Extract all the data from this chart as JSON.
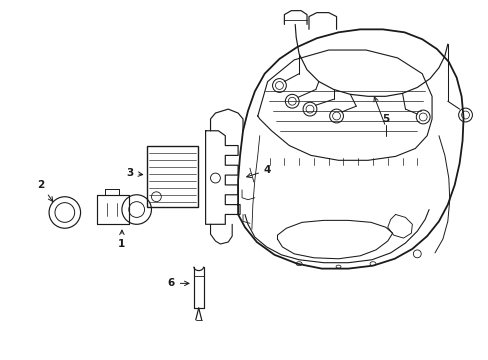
{
  "background_color": "#ffffff",
  "line_color": "#1a1a1a",
  "fig_width": 4.89,
  "fig_height": 3.6,
  "dpi": 100,
  "label_fontsize": 7.5
}
